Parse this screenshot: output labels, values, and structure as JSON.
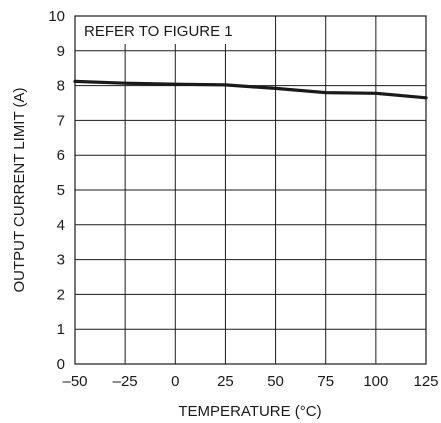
{
  "chart_data": {
    "type": "line",
    "annotation": "REFER TO FIGURE 1",
    "xlabel": "TEMPERATURE (°C)",
    "ylabel": "OUTPUT CURRENT LIMIT (A)",
    "xlim": [
      -50,
      125
    ],
    "ylim": [
      0,
      10
    ],
    "x_ticks": [
      "–50",
      "–25",
      "0",
      "25",
      "50",
      "75",
      "100",
      "125"
    ],
    "x_tick_values": [
      -50,
      -25,
      0,
      25,
      50,
      75,
      100,
      125
    ],
    "y_ticks": [
      "0",
      "1",
      "2",
      "3",
      "4",
      "5",
      "6",
      "7",
      "8",
      "9",
      "10"
    ],
    "y_tick_values": [
      0,
      1,
      2,
      3,
      4,
      5,
      6,
      7,
      8,
      9,
      10
    ],
    "grid": true,
    "series": [
      {
        "x": [
          -50,
          -25,
          0,
          25,
          50,
          75,
          100,
          125
        ],
        "y": [
          8.12,
          8.07,
          8.04,
          8.02,
          7.92,
          7.8,
          7.78,
          7.65
        ]
      }
    ]
  }
}
